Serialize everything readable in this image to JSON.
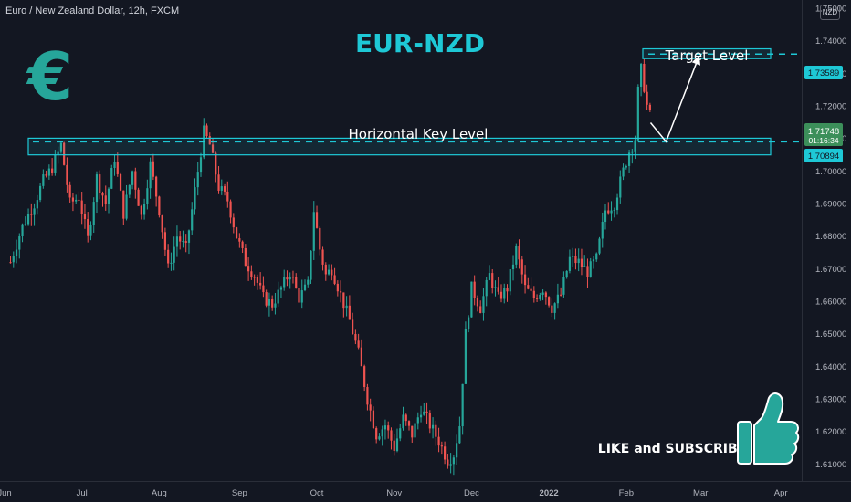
{
  "header": {
    "symbol_title": "Euro / New Zealand Dollar, 12h, FXCM",
    "currency_button": "NZD"
  },
  "annotations": {
    "main_title": "EUR-NZD",
    "key_level_label": "Horizontal Key Level",
    "target_label": "Target Level",
    "cta_text": "LIKE and SUBSCRIBE",
    "euro_symbol": "€"
  },
  "colors": {
    "background": "#131722",
    "up_candle": "#26a69a",
    "down_candle": "#ef5350",
    "accent_cyan": "#1ec8d6",
    "euro_icon": "#26a69a",
    "current_price_bg": "#3c8f5a"
  },
  "price_labels": {
    "target_price": "1.73589",
    "current_price": "1.71748",
    "countdown": "01:16:34",
    "key_level_price": "1.70894"
  },
  "chart_data": {
    "type": "candlestick",
    "title": "EUR-NZD",
    "y_axis_ticks": [
      "1.75000",
      "1.74000",
      "1.73000",
      "1.72000",
      "1.71000",
      "1.70000",
      "1.69000",
      "1.68000",
      "1.67000",
      "1.66000",
      "1.65000",
      "1.64000",
      "1.63000",
      "1.62000",
      "1.61000"
    ],
    "x_axis_ticks": [
      "Jun",
      "Jul",
      "Aug",
      "Sep",
      "Oct",
      "Nov",
      "Dec",
      "2022",
      "Feb",
      "Mar",
      "Apr"
    ],
    "ylim": [
      1.6045,
      1.7525
    ],
    "y_axis_side": "right",
    "grid": false,
    "horizontal_key_level": 1.70894,
    "key_zone": [
      1.7055,
      1.7095
    ],
    "target_level": 1.73589,
    "target_zone": [
      1.7345,
      1.7375
    ],
    "projection_path": [
      [
        1.7355,
        1.7127
      ],
      [
        1.7485,
        1.709
      ],
      [
        1.734,
        1.748
      ]
    ],
    "close_path": [
      [
        1.0,
        1.672
      ],
      [
        3.0,
        1.683
      ],
      [
        5.0,
        1.69
      ],
      [
        6.5,
        1.697
      ],
      [
        8.0,
        1.701
      ],
      [
        9.5,
        1.708
      ],
      [
        11.0,
        1.69
      ],
      [
        12.5,
        1.692
      ],
      [
        14.0,
        1.679
      ],
      [
        15.5,
        1.698
      ],
      [
        17.0,
        1.69
      ],
      [
        18.5,
        1.704
      ],
      [
        20.0,
        1.687
      ],
      [
        21.5,
        1.7
      ],
      [
        23.0,
        1.686
      ],
      [
        24.5,
        1.702
      ],
      [
        26.0,
        1.688
      ],
      [
        27.5,
        1.67
      ],
      [
        29.0,
        1.68
      ],
      [
        30.5,
        1.676
      ],
      [
        32.0,
        1.694
      ],
      [
        33.5,
        1.712
      ],
      [
        34.5,
        1.708
      ],
      [
        36.0,
        1.695
      ],
      [
        37.5,
        1.691
      ],
      [
        39.0,
        1.68
      ],
      [
        40.5,
        1.672
      ],
      [
        42.0,
        1.668
      ],
      [
        43.5,
        1.661
      ],
      [
        45.0,
        1.659
      ],
      [
        46.5,
        1.664
      ],
      [
        48.0,
        1.669
      ],
      [
        49.5,
        1.661
      ],
      [
        51.0,
        1.665
      ],
      [
        52.0,
        1.688
      ],
      [
        53.0,
        1.676
      ],
      [
        54.0,
        1.668
      ],
      [
        55.0,
        1.67
      ],
      [
        56.5,
        1.662
      ],
      [
        58.0,
        1.654
      ],
      [
        59.5,
        1.644
      ],
      [
        61.0,
        1.63
      ],
      [
        62.5,
        1.619
      ],
      [
        64.0,
        1.622
      ],
      [
        65.5,
        1.615
      ],
      [
        67.0,
        1.624
      ],
      [
        68.5,
        1.619
      ],
      [
        70.0,
        1.627
      ],
      [
        71.5,
        1.622
      ],
      [
        73.0,
        1.617
      ],
      [
        74.5,
        1.611
      ],
      [
        75.5,
        1.613
      ],
      [
        76.5,
        1.622
      ],
      [
        77.5,
        1.65
      ],
      [
        78.5,
        1.664
      ],
      [
        80.0,
        1.658
      ],
      [
        81.5,
        1.668
      ],
      [
        83.0,
        1.661
      ],
      [
        84.5,
        1.664
      ],
      [
        86.0,
        1.676
      ],
      [
        87.5,
        1.664
      ],
      [
        89.0,
        1.661
      ],
      [
        90.5,
        1.664
      ],
      [
        92.0,
        1.658
      ],
      [
        93.5,
        1.662
      ],
      [
        95.0,
        1.673
      ],
      [
        96.5,
        1.672
      ],
      [
        98.0,
        1.669
      ],
      [
        99.5,
        1.673
      ],
      [
        101.0,
        1.688
      ],
      [
        102.5,
        1.69
      ],
      [
        104.0,
        1.7
      ],
      [
        105.0,
        1.706
      ],
      [
        106.0,
        1.71
      ],
      [
        106.8,
        1.733
      ],
      [
        107.5,
        1.726
      ],
      [
        108.0,
        1.72
      ],
      [
        108.5,
        1.717
      ]
    ],
    "month_positions": {
      "Jun": 0,
      "Jul": 13,
      "Aug": 26,
      "Sep": 39.5,
      "Oct": 52.5,
      "Nov": 65.5,
      "Dec": 78.5,
      "2022": 91.5,
      "Feb": 104.5,
      "Mar": 117,
      "Apr": 130.5
    }
  }
}
